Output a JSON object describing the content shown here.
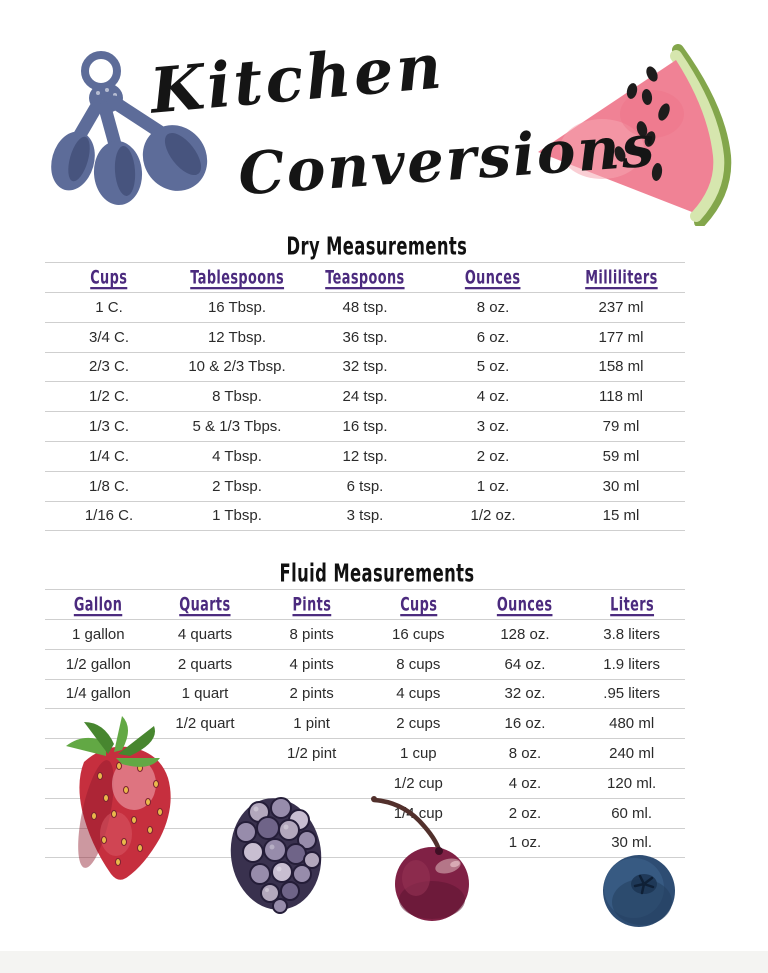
{
  "title": {
    "line1": "Kitchen",
    "line2": "Conversions"
  },
  "dry_table": {
    "title": "Dry Measurements",
    "headers": [
      "Cups",
      "Tablespoons",
      "Teaspoons",
      "Ounces",
      "Milliliters"
    ],
    "rows": [
      [
        "1 C.",
        "16 Tbsp.",
        "48 tsp.",
        "8 oz.",
        "237 ml"
      ],
      [
        "3/4 C.",
        "12 Tbsp.",
        "36 tsp.",
        "6 oz.",
        "177 ml"
      ],
      [
        "2/3 C.",
        "10 & 2/3 Tbsp.",
        "32 tsp.",
        "5 oz.",
        "158 ml"
      ],
      [
        "1/2 C.",
        "8 Tbsp.",
        "24 tsp.",
        "4 oz.",
        "118 ml"
      ],
      [
        "1/3 C.",
        "5 & 1/3 Tbps.",
        "16 tsp.",
        "3 oz.",
        "79 ml"
      ],
      [
        "1/4 C.",
        "4 Tbsp.",
        "12 tsp.",
        "2 oz.",
        "59 ml"
      ],
      [
        "1/8 C.",
        "2 Tbsp.",
        "6 tsp.",
        "1 oz.",
        "30 ml"
      ],
      [
        "1/16 C.",
        "1 Tbsp.",
        "3 tsp.",
        "1/2 oz.",
        "15 ml"
      ]
    ]
  },
  "fluid_table": {
    "title": "Fluid Measurements",
    "headers": [
      "Gallon",
      "Quarts",
      "Pints",
      "Cups",
      "Ounces",
      "Liters"
    ],
    "rows": [
      [
        "1 gallon",
        "4 quarts",
        "8 pints",
        "16 cups",
        "128 oz.",
        "3.8 liters"
      ],
      [
        "1/2 gallon",
        "2 quarts",
        "4 pints",
        "8 cups",
        "64 oz.",
        "1.9 liters"
      ],
      [
        "1/4 gallon",
        "1 quart",
        "2 pints",
        "4 cups",
        "32 oz.",
        ".95 liters"
      ],
      [
        "",
        "1/2 quart",
        "1 pint",
        "2 cups",
        "16 oz.",
        "480 ml"
      ],
      [
        "",
        "",
        "1/2 pint",
        "1 cup",
        "8 oz.",
        "240 ml"
      ],
      [
        "",
        "",
        "",
        "1/2 cup",
        "4 oz.",
        "120 ml."
      ],
      [
        "",
        "",
        "",
        "1/4 cup",
        "2 oz.",
        "60 ml."
      ],
      [
        "",
        "",
        "",
        "",
        "1 oz.",
        "30 ml."
      ]
    ]
  },
  "illustrations": [
    "measuring-spoons",
    "watermelon-slice",
    "strawberry",
    "blackberry",
    "cherry",
    "blueberry"
  ],
  "colors": {
    "purple": "#4b2a7e",
    "rule": "#cfcfcf",
    "body_text": "#2b2b2b",
    "title_black": "#151515",
    "spoon_blue": "#5d6c99",
    "watermelon_pink": "#f08295",
    "strawberry_red": "#c62f3e"
  }
}
